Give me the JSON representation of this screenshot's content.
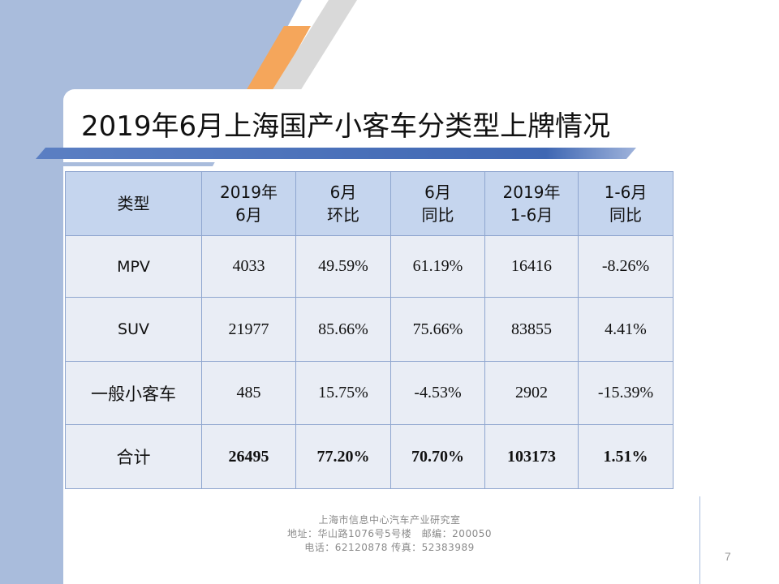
{
  "slide": {
    "title": "2019年6月上海国产小客车分类型上牌情况",
    "page_number": "7"
  },
  "table": {
    "headers": [
      [
        "类型"
      ],
      [
        "2019年",
        "6月"
      ],
      [
        "6月",
        "环比"
      ],
      [
        "6月",
        "同比"
      ],
      [
        "2019年",
        "1-6月"
      ],
      [
        "1-6月",
        "同比"
      ]
    ],
    "rows": [
      [
        "MPV",
        "4033",
        "49.59%",
        "61.19%",
        "16416",
        "-8.26%"
      ],
      [
        "SUV",
        "21977",
        "85.66%",
        "75.66%",
        "83855",
        "4.41%"
      ],
      [
        "一般小客车",
        "485",
        "15.75%",
        "-4.53%",
        "2902",
        "-15.39%"
      ],
      [
        "合计",
        "26495",
        "77.20%",
        "70.70%",
        "103173",
        "1.51%"
      ]
    ]
  },
  "footer": {
    "line1": "上海市信息中心汽车产业研究室",
    "line2": "地址：华山路1076号5号楼　邮编：200050",
    "line3": "电话：62120878 传真：52383989"
  },
  "colors": {
    "band": "#a9bcdc",
    "accent_orange": "#f5a65b",
    "header_fill": "#c5d5ee",
    "cell_fill": "#e9edf5",
    "border": "#8fa6cf"
  }
}
